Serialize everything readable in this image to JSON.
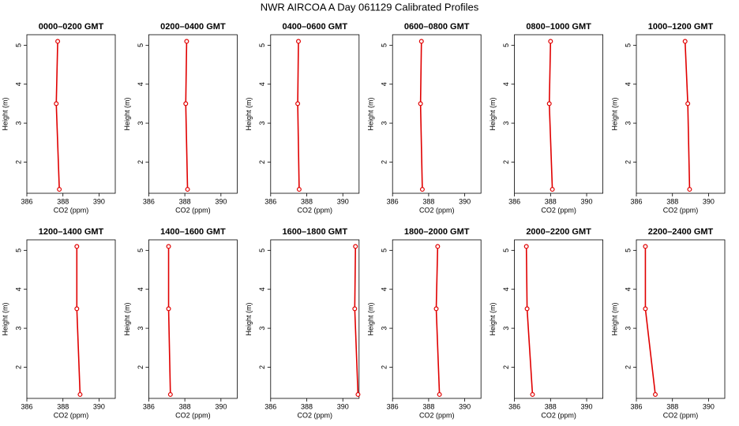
{
  "title": "NWR AIRCOA A  Day 061129  Calibrated Profiles",
  "chart_data": [
    {
      "type": "line",
      "title": "0000–0200 GMT",
      "xlabel": "CO2 (ppm)",
      "ylabel": "Height (m)",
      "color": "#e00000",
      "y": [
        5.1,
        3.5,
        1.3
      ],
      "values": [
        387.71,
        387.63,
        387.8
      ],
      "xlim": [
        386,
        390.9
      ],
      "ylim": [
        1.2,
        5.27
      ],
      "xticks": [
        386,
        388,
        390
      ],
      "yticks": [
        2,
        3,
        4,
        5
      ]
    },
    {
      "type": "line",
      "title": "0200–0400 GMT",
      "xlabel": "CO2 (ppm)",
      "ylabel": "Height (m)",
      "color": "#e00000",
      "y": [
        5.1,
        3.5,
        1.3
      ],
      "values": [
        388.1,
        388.05,
        388.15
      ],
      "xlim": [
        386,
        390.9
      ],
      "ylim": [
        1.2,
        5.27
      ],
      "xticks": [
        386,
        388,
        390
      ],
      "yticks": [
        2,
        3,
        4,
        5
      ]
    },
    {
      "type": "line",
      "title": "0400–0600 GMT",
      "xlabel": "CO2 (ppm)",
      "ylabel": "Height (m)",
      "color": "#e00000",
      "y": [
        5.1,
        3.5,
        1.3
      ],
      "values": [
        387.54,
        387.5,
        387.58
      ],
      "xlim": [
        386,
        390.9
      ],
      "ylim": [
        1.2,
        5.27
      ],
      "xticks": [
        386,
        388,
        390
      ],
      "yticks": [
        2,
        3,
        4,
        5
      ]
    },
    {
      "type": "line",
      "title": "0600–0800 GMT",
      "xlabel": "CO2 (ppm)",
      "ylabel": "Height (m)",
      "color": "#e00000",
      "y": [
        5.1,
        3.5,
        1.3
      ],
      "values": [
        387.6,
        387.55,
        387.65
      ],
      "xlim": [
        386,
        390.9
      ],
      "ylim": [
        1.2,
        5.27
      ],
      "xticks": [
        386,
        388,
        390
      ],
      "yticks": [
        2,
        3,
        4,
        5
      ]
    },
    {
      "type": "line",
      "title": "0800–1000 GMT",
      "xlabel": "CO2 (ppm)",
      "ylabel": "Height (m)",
      "color": "#e00000",
      "y": [
        5.1,
        3.5,
        1.3
      ],
      "values": [
        388.0,
        387.93,
        388.1
      ],
      "xlim": [
        386,
        390.9
      ],
      "ylim": [
        1.2,
        5.27
      ],
      "xticks": [
        386,
        388,
        390
      ],
      "yticks": [
        2,
        3,
        4,
        5
      ]
    },
    {
      "type": "line",
      "title": "1000–1200 GMT",
      "xlabel": "CO2 (ppm)",
      "ylabel": "Height (m)",
      "color": "#e00000",
      "y": [
        5.1,
        3.5,
        1.3
      ],
      "values": [
        388.7,
        388.85,
        388.95
      ],
      "xlim": [
        386,
        390.9
      ],
      "ylim": [
        1.2,
        5.27
      ],
      "xticks": [
        386,
        388,
        390
      ],
      "yticks": [
        2,
        3,
        4,
        5
      ]
    },
    {
      "type": "line",
      "title": "1200–1400 GMT",
      "xlabel": "CO2 (ppm)",
      "ylabel": "Height (m)",
      "color": "#e00000",
      "y": [
        5.1,
        3.5,
        1.3
      ],
      "values": [
        388.77,
        388.77,
        388.95
      ],
      "xlim": [
        386,
        390.9
      ],
      "ylim": [
        1.2,
        5.27
      ],
      "xticks": [
        386,
        388,
        390
      ],
      "yticks": [
        2,
        3,
        4,
        5
      ]
    },
    {
      "type": "line",
      "title": "1400–1600 GMT",
      "xlabel": "CO2 (ppm)",
      "ylabel": "Height (m)",
      "color": "#e00000",
      "y": [
        5.1,
        3.5,
        1.3
      ],
      "values": [
        387.1,
        387.1,
        387.2
      ],
      "xlim": [
        386,
        390.9
      ],
      "ylim": [
        1.2,
        5.27
      ],
      "xticks": [
        386,
        388,
        390
      ],
      "yticks": [
        2,
        3,
        4,
        5
      ]
    },
    {
      "type": "line",
      "title": "1600–1800 GMT",
      "xlabel": "CO2 (ppm)",
      "ylabel": "Height (m)",
      "color": "#e00000",
      "y": [
        5.1,
        3.5,
        1.3
      ],
      "values": [
        390.7,
        390.66,
        390.84
      ],
      "xlim": [
        386,
        390.9
      ],
      "ylim": [
        1.2,
        5.27
      ],
      "xticks": [
        386,
        388,
        390
      ],
      "yticks": [
        2,
        3,
        4,
        5
      ]
    },
    {
      "type": "line",
      "title": "1800–2000 GMT",
      "xlabel": "CO2 (ppm)",
      "ylabel": "Height (m)",
      "color": "#e00000",
      "y": [
        5.1,
        3.5,
        1.3
      ],
      "values": [
        388.5,
        388.42,
        388.6
      ],
      "xlim": [
        386,
        390.9
      ],
      "ylim": [
        1.2,
        5.27
      ],
      "xticks": [
        386,
        388,
        390
      ],
      "yticks": [
        2,
        3,
        4,
        5
      ]
    },
    {
      "type": "line",
      "title": "2000–2200 GMT",
      "xlabel": "CO2 (ppm)",
      "ylabel": "Height (m)",
      "color": "#e00000",
      "y": [
        5.1,
        3.5,
        1.3
      ],
      "values": [
        386.66,
        386.7,
        387.0
      ],
      "xlim": [
        386,
        390.9
      ],
      "ylim": [
        1.2,
        5.27
      ],
      "xticks": [
        386,
        388,
        390
      ],
      "yticks": [
        2,
        3,
        4,
        5
      ]
    },
    {
      "type": "line",
      "title": "2200–2400 GMT",
      "xlabel": "CO2 (ppm)",
      "ylabel": "Height (m)",
      "color": "#e00000",
      "y": [
        5.1,
        3.5,
        1.3
      ],
      "values": [
        386.5,
        386.5,
        387.05
      ],
      "xlim": [
        386,
        390.9
      ],
      "ylim": [
        1.2,
        5.27
      ],
      "xticks": [
        386,
        388,
        390
      ],
      "yticks": [
        2,
        3,
        4,
        5
      ]
    }
  ]
}
